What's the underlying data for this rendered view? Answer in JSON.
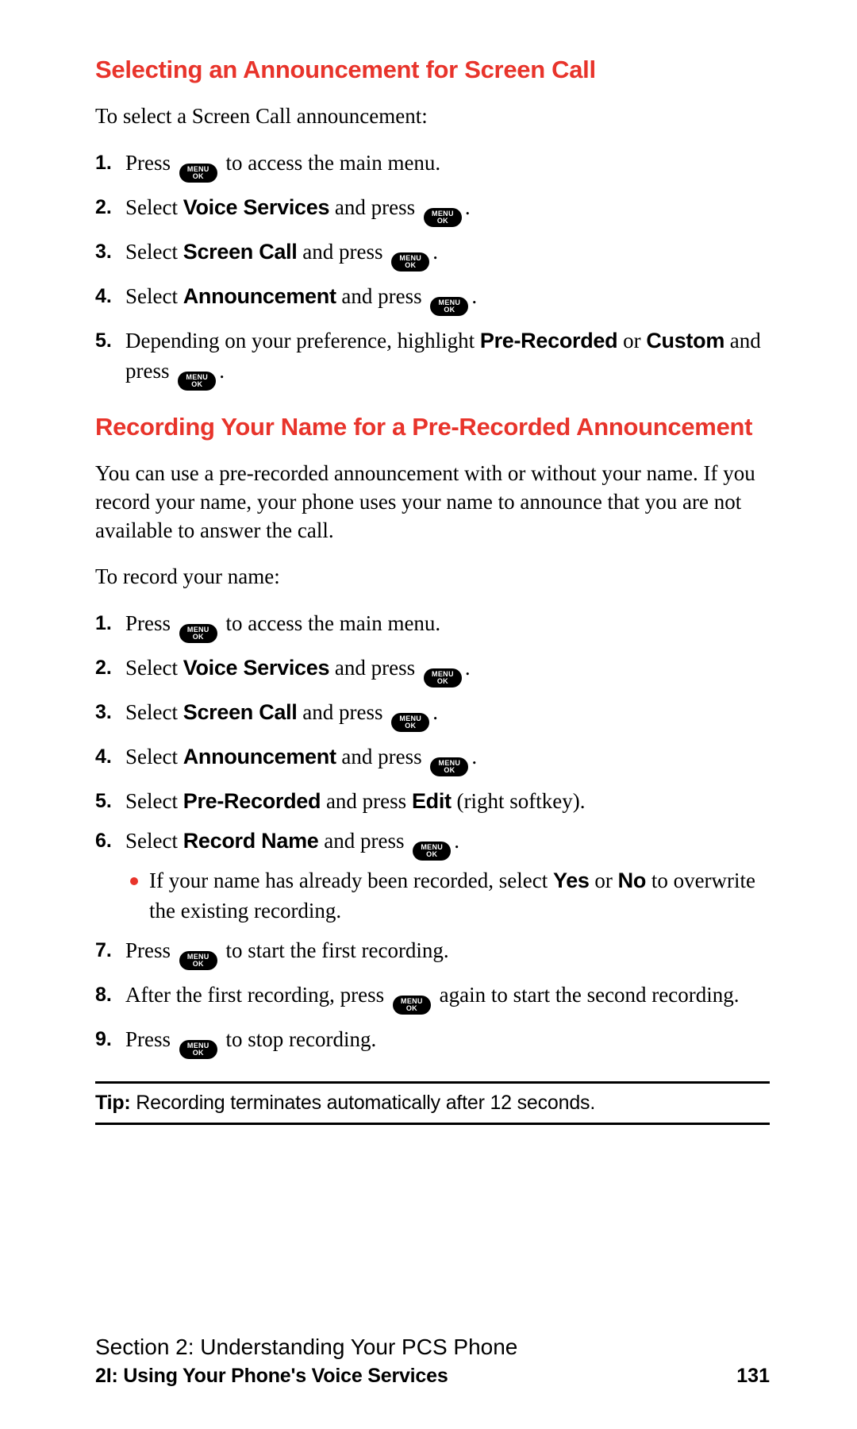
{
  "colors": {
    "heading_red": "#e8342b",
    "text_black": "#000000",
    "background": "#ffffff",
    "bullet_red": "#e8342b"
  },
  "typography": {
    "heading_size_pt": 23,
    "body_size_pt": 20,
    "tip_size_pt": 18,
    "footer_size_pt": 19
  },
  "button": {
    "line1": "MENU",
    "line2": "OK"
  },
  "section1": {
    "title": "Selecting an Announcement for Screen Call",
    "intro": "To select a Screen Call announcement:",
    "steps": [
      {
        "n": "1.",
        "pre": "Press ",
        "post": " to access the main menu."
      },
      {
        "n": "2.",
        "pre": "Select ",
        "bold1": "Voice Services",
        "mid": " and press ",
        "post": "."
      },
      {
        "n": "3.",
        "pre": "Select ",
        "bold1": "Screen Call",
        "mid": " and press ",
        "post": "."
      },
      {
        "n": "4.",
        "pre": "Select ",
        "bold1": "Announcement",
        "mid": " and press ",
        "post": "."
      },
      {
        "n": "5.",
        "pre": "Depending on your preference, highlight ",
        "bold1": "Pre-Recorded",
        "mid": " or ",
        "bold2": "Custom",
        "mid2": " and press ",
        "post": "."
      }
    ]
  },
  "section2": {
    "title": "Recording Your Name for a Pre-Recorded Announcement",
    "para": "You can use a pre-recorded announcement with or without your name. If you record your name, your phone uses your name to announce that you are not available to answer the call.",
    "intro": "To record your name:",
    "s1": {
      "n": "1.",
      "pre": "Press ",
      "post": " to access the main menu."
    },
    "s2": {
      "n": "2.",
      "pre": "Select ",
      "bold": "Voice Services",
      "mid": " and press ",
      "post": "."
    },
    "s3": {
      "n": "3.",
      "pre": "Select ",
      "bold": "Screen Call",
      "mid": " and press ",
      "post": "."
    },
    "s4": {
      "n": "4.",
      "pre": "Select ",
      "bold": "Announcement",
      "mid": " and press ",
      "post": "."
    },
    "s5": {
      "n": "5.",
      "pre": "Select ",
      "bold": "Pre-Recorded",
      "mid": " and press ",
      "bold2": "Edit",
      "post": " (right softkey)."
    },
    "s6": {
      "n": "6.",
      "pre": "Select ",
      "bold": "Record Name",
      "mid": " and press ",
      "post": "."
    },
    "s6sub": {
      "pre": "If your name has already been recorded, select ",
      "bold1": "Yes",
      "mid": " or ",
      "bold2": "No",
      "post": " to overwrite the existing recording."
    },
    "s7": {
      "n": "7.",
      "pre": "Press ",
      "post": " to start the first recording."
    },
    "s8": {
      "n": "8.",
      "pre": "After the first recording, press ",
      "post": " again to start the second recording."
    },
    "s9": {
      "n": "9.",
      "pre": "Press ",
      "post": " to stop recording."
    }
  },
  "tip": {
    "label": "Tip:",
    "text": " Recording terminates automatically after 12 seconds."
  },
  "footer": {
    "line1": "Section 2: Understanding Your PCS Phone",
    "line2": "2I: Using Your Phone's Voice Services",
    "page": "131"
  }
}
